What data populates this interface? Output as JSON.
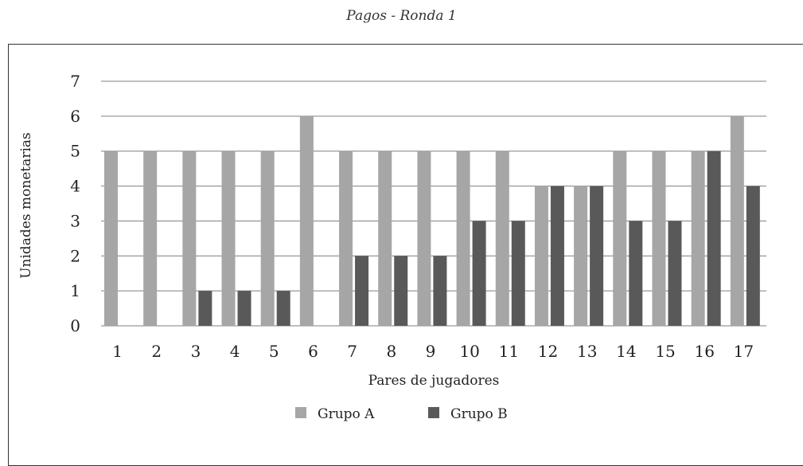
{
  "page": {
    "title": "Pagos - Ronda 1"
  },
  "chart_data": {
    "type": "bar",
    "title": "Pagos - Ronda 1",
    "xlabel": "Pares de jugadores",
    "ylabel": "Unidades monetarias",
    "ylim": [
      0,
      7
    ],
    "yticks": [
      0,
      1,
      2,
      3,
      4,
      5,
      6,
      7
    ],
    "grid": "horizontal",
    "legend": "bottom",
    "categories": [
      "1",
      "2",
      "3",
      "4",
      "5",
      "6",
      "7",
      "8",
      "9",
      "10",
      "11",
      "12",
      "13",
      "14",
      "15",
      "16",
      "17"
    ],
    "series": [
      {
        "name": "Grupo A",
        "color": "#a6a6a6",
        "values": [
          5,
          5,
          5,
          5,
          5,
          6,
          5,
          5,
          5,
          5,
          5,
          4,
          4,
          5,
          5,
          5,
          6
        ]
      },
      {
        "name": "Grupo B",
        "color": "#595959",
        "values": [
          0,
          0,
          1,
          1,
          1,
          0,
          2,
          2,
          2,
          3,
          3,
          4,
          4,
          3,
          3,
          5,
          4
        ]
      }
    ]
  }
}
